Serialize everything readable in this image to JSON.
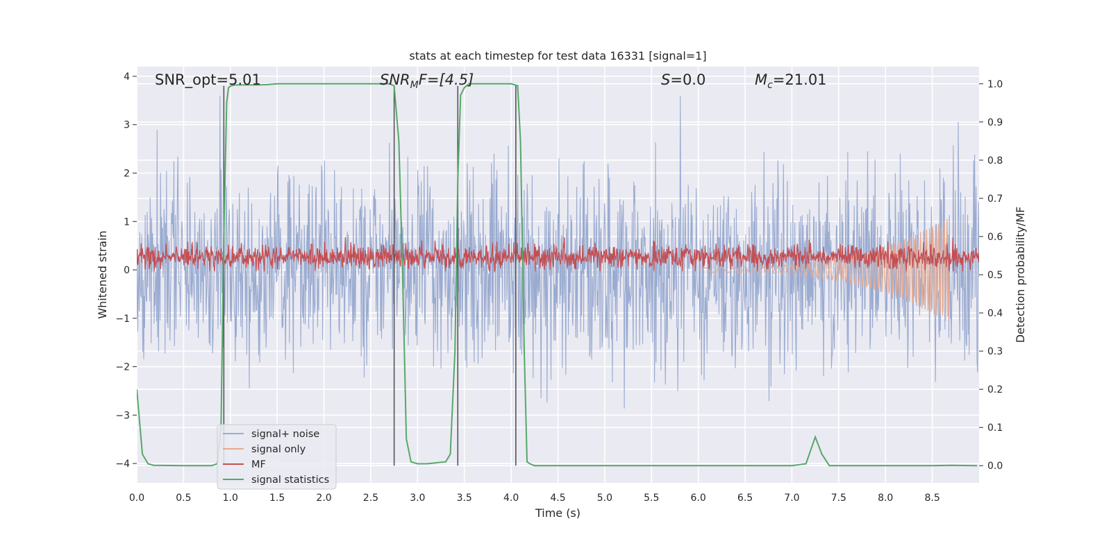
{
  "chart_data": {
    "type": "line",
    "title": "stats at each timestep for test data 16331 [signal=1]",
    "xlabel": "Time (s)",
    "ylabel": "Whitened strain",
    "y2label": "Detection probability/MF",
    "xlim": [
      0,
      9.0
    ],
    "ylim": [
      -4.4,
      4.2
    ],
    "y2lim": [
      -0.045,
      1.045
    ],
    "xticks": [
      "0.0",
      "0.5",
      "1.0",
      "1.5",
      "2.0",
      "2.5",
      "3.0",
      "3.5",
      "4.0",
      "4.5",
      "5.0",
      "5.5",
      "6.0",
      "6.5",
      "7.0",
      "7.5",
      "8.0",
      "8.5"
    ],
    "yticks": [
      "4",
      "3",
      "2",
      "1",
      "0",
      "−1",
      "−2",
      "−3",
      "−4"
    ],
    "y2ticks": [
      "1.0",
      "0.9",
      "0.8",
      "0.7",
      "0.6",
      "0.5",
      "0.4",
      "0.3",
      "0.2",
      "0.1",
      "0.0"
    ],
    "grid": true,
    "legend_position": "bottom-left",
    "annotations": {
      "snr_opt": "SNR_opt=5.01",
      "snr_mf_italic": "SNR",
      "snr_mf_sub": "M",
      "snr_mf_rest": "F=[4.5]",
      "s_italic": "S",
      "s_rest": "=0.0",
      "mc_italic": "M",
      "mc_sub": "c",
      "mc_rest": "=21.01"
    },
    "series": [
      {
        "name": "signal+ noise",
        "color": "#9aabd0",
        "axis": "left",
        "kind": "noise",
        "sigma": 1.0,
        "range_min": -3.8,
        "range_max": 3.6
      },
      {
        "name": "signal only",
        "color": "#e9a98c",
        "axis": "left",
        "kind": "chirp",
        "x_start": 6.0,
        "x_end": 8.68,
        "amp_start": 0.05,
        "amp_end": 1.1
      },
      {
        "name": "MF",
        "color": "#c44e52",
        "axis": "left",
        "kind": "noise",
        "mean": 0.27,
        "sigma": 0.13,
        "range_min": -0.03,
        "range_max": 0.8
      },
      {
        "name": "signal statistics",
        "color": "#55a868",
        "axis": "right",
        "x": [
          0.0,
          0.06,
          0.12,
          0.18,
          0.5,
          0.8,
          0.86,
          0.9,
          0.93,
          0.96,
          0.98,
          1.01,
          1.05,
          1.1,
          1.2,
          1.3,
          1.4,
          1.5,
          2.0,
          2.5,
          2.7,
          2.75,
          2.8,
          2.84,
          2.88,
          2.93,
          3.0,
          3.1,
          3.3,
          3.35,
          3.4,
          3.43,
          3.46,
          3.5,
          3.55,
          3.6,
          3.7,
          3.8,
          4.0,
          4.07,
          4.1,
          4.14,
          4.17,
          4.2,
          4.25,
          4.3,
          5.0,
          6.0,
          7.0,
          7.15,
          7.25,
          7.32,
          7.4,
          8.0,
          8.5,
          8.7,
          8.98
        ],
        "y": [
          0.2,
          0.03,
          0.005,
          0.001,
          0.0,
          0.0,
          0.005,
          0.1,
          0.6,
          0.95,
          0.99,
          0.995,
          0.997,
          0.997,
          0.997,
          0.997,
          0.998,
          1.0,
          1.0,
          1.0,
          1.0,
          0.995,
          0.85,
          0.5,
          0.07,
          0.01,
          0.005,
          0.005,
          0.01,
          0.03,
          0.3,
          0.75,
          0.97,
          0.99,
          1.0,
          1.0,
          1.0,
          1.0,
          1.0,
          0.995,
          0.85,
          0.3,
          0.01,
          0.005,
          0.0,
          0.0,
          0.0,
          0.0,
          0.0,
          0.005,
          0.075,
          0.03,
          0.0,
          0.0,
          0.0,
          0.001,
          0.0
        ]
      }
    ],
    "vertical_lines": [
      0.93,
      2.75,
      3.43,
      4.05
    ]
  }
}
